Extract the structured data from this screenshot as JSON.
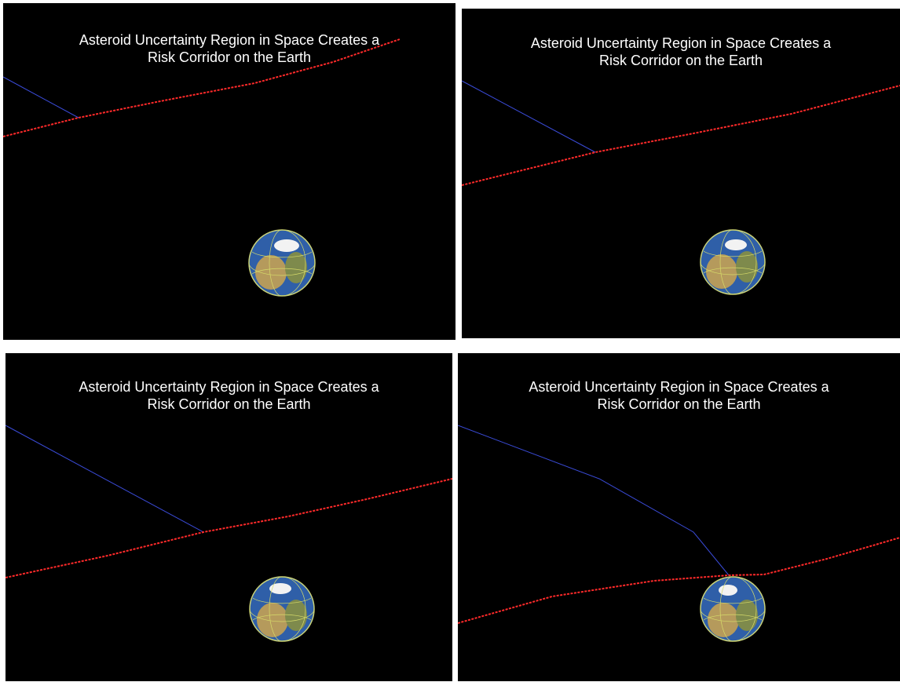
{
  "panels": [
    {
      "caption_line1": "Asteroid Uncertainty Region in Space Creates a",
      "caption_line2": "Risk Corridor on the Earth"
    },
    {
      "caption_line1": "Asteroid Uncertainty Region in Space Creates a",
      "caption_line2": "Risk Corridor on the Earth"
    },
    {
      "caption_line1": "Asteroid Uncertainty Region in Space Creates a",
      "caption_line2": "Risk Corridor on the Earth"
    },
    {
      "caption_line1": "Asteroid Uncertainty Region in Space Creates a",
      "caption_line2": "Risk Corridor on the Earth"
    }
  ],
  "colors": {
    "background": "#000000",
    "uncertainty_region": "#ff2a2a",
    "orbit_line": "#3a4bd8",
    "caption": "#ffffff"
  }
}
